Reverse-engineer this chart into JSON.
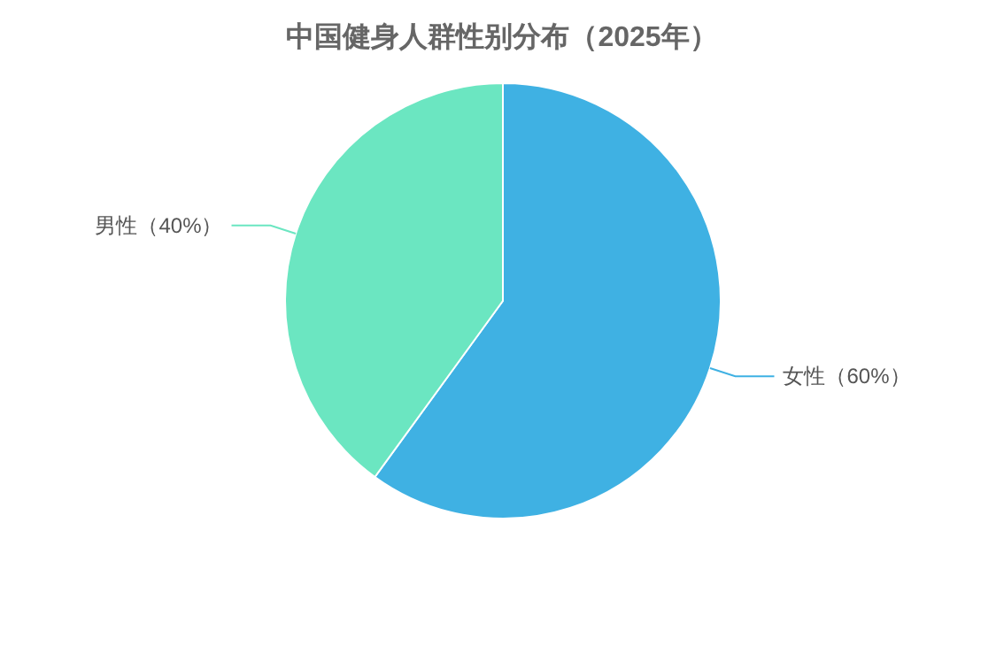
{
  "chart_data": {
    "type": "pie",
    "title": "中国健身人群性别分布（2025年）",
    "categories": [
      "女性（60%）",
      "男性（40%）"
    ],
    "values": [
      60,
      40
    ],
    "colors": [
      "#3fb1e3",
      "#6be6c1"
    ]
  }
}
